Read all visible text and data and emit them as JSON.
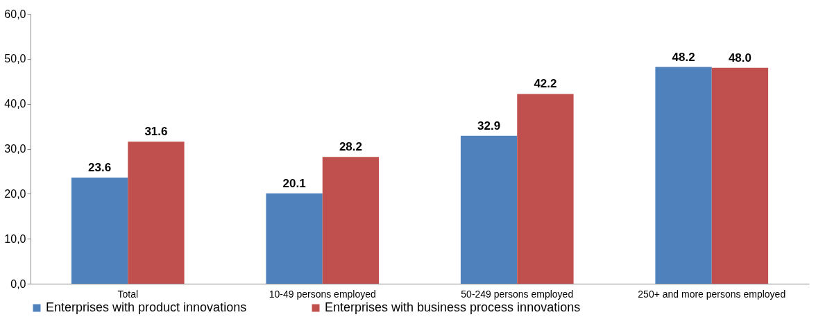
{
  "chart_data": {
    "type": "bar",
    "categories": [
      "Total",
      "10-49 persons employed",
      "50-249 persons employed",
      "250+ and more persons employed"
    ],
    "series": [
      {
        "name": "Enterprises with product innovations",
        "color": "#4f81bd",
        "values": [
          23.6,
          20.1,
          32.9,
          48.2
        ],
        "value_labels": [
          "23.6",
          "20.1",
          "32.9",
          "48.2"
        ]
      },
      {
        "name": "Enterprises with business process innovations",
        "color": "#c0504d",
        "values": [
          31.6,
          28.2,
          42.2,
          48.0
        ],
        "value_labels": [
          "31.6",
          "28.2",
          "42.2",
          "48.0"
        ]
      }
    ],
    "ylim": [
      0,
      60
    ],
    "yticks": [
      {
        "value": 0,
        "label": "0,0"
      },
      {
        "value": 10,
        "label": "10,0"
      },
      {
        "value": 20,
        "label": "20,0"
      },
      {
        "value": 30,
        "label": "30,0"
      },
      {
        "value": 40,
        "label": "40,0"
      },
      {
        "value": 50,
        "label": "50,0"
      },
      {
        "value": 60,
        "label": "60,0"
      }
    ],
    "legend": "bottom",
    "grid": false
  }
}
